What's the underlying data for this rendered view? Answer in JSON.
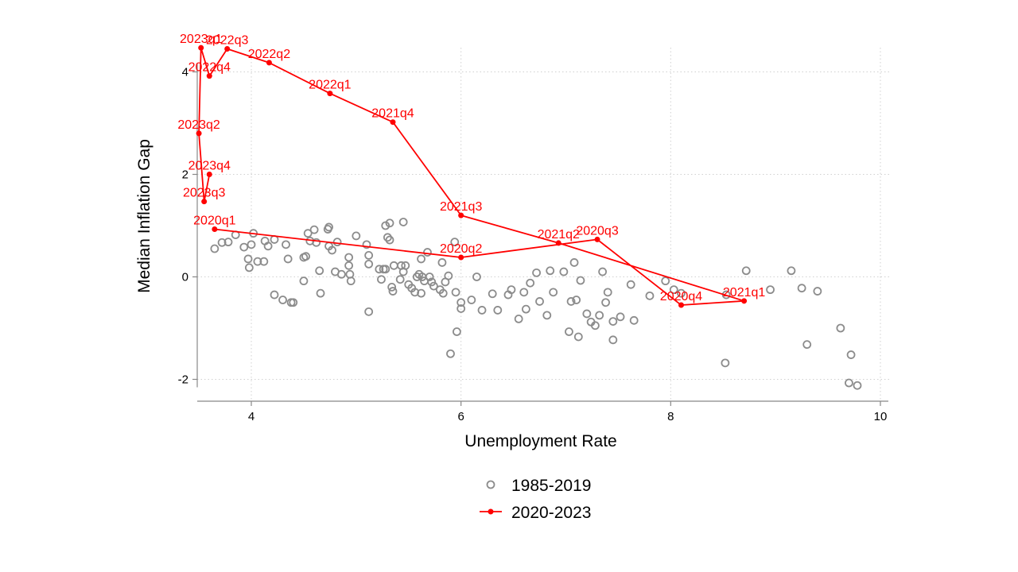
{
  "chart_data": {
    "type": "scatter",
    "xlabel": "Unemployment Rate",
    "ylabel": "Median Inflation Gap",
    "xlim": [
      3.5,
      10.1
    ],
    "ylim": [
      -2.4,
      4.7
    ],
    "xticks": [
      4,
      6,
      8,
      10
    ],
    "yticks": [
      -2,
      0,
      2,
      4
    ],
    "xtick_labels": [
      "4",
      "6",
      "8",
      "10"
    ],
    "ytick_labels": [
      "-2",
      "0",
      "2",
      "4"
    ],
    "grid": true,
    "legend_position": "bottom-center",
    "colors": {
      "historical": "#8c8c8c",
      "recent": "#ff0000",
      "grid": "#d0d0d0",
      "axis": "#888888"
    },
    "series": [
      {
        "name": "1985-2019",
        "style": "hollow-circles",
        "points": [
          [
            3.65,
            0.55
          ],
          [
            3.72,
            0.67
          ],
          [
            3.78,
            0.68
          ],
          [
            3.85,
            0.82
          ],
          [
            3.93,
            0.58
          ],
          [
            3.97,
            0.35
          ],
          [
            3.98,
            0.18
          ],
          [
            4.0,
            0.63
          ],
          [
            4.02,
            0.85
          ],
          [
            4.06,
            0.3
          ],
          [
            4.12,
            0.3
          ],
          [
            4.13,
            0.7
          ],
          [
            4.16,
            0.6
          ],
          [
            4.22,
            0.73
          ],
          [
            4.22,
            -0.35
          ],
          [
            4.3,
            -0.45
          ],
          [
            4.33,
            0.63
          ],
          [
            4.35,
            0.35
          ],
          [
            4.38,
            -0.5
          ],
          [
            4.4,
            -0.5
          ],
          [
            4.5,
            0.38
          ],
          [
            4.5,
            -0.08
          ],
          [
            4.52,
            0.4
          ],
          [
            4.54,
            0.85
          ],
          [
            4.56,
            0.7
          ],
          [
            4.6,
            0.92
          ],
          [
            4.62,
            0.67
          ],
          [
            4.65,
            0.12
          ],
          [
            4.66,
            -0.32
          ],
          [
            4.73,
            0.93
          ],
          [
            4.74,
            0.6
          ],
          [
            4.74,
            0.97
          ],
          [
            4.77,
            0.52
          ],
          [
            4.8,
            0.1
          ],
          [
            4.82,
            0.68
          ],
          [
            4.86,
            0.05
          ],
          [
            4.93,
            0.38
          ],
          [
            4.93,
            0.22
          ],
          [
            4.94,
            0.05
          ],
          [
            4.95,
            -0.08
          ],
          [
            5.0,
            0.8
          ],
          [
            5.1,
            0.63
          ],
          [
            5.12,
            0.42
          ],
          [
            5.12,
            0.25
          ],
          [
            5.12,
            -0.68
          ],
          [
            5.22,
            0.15
          ],
          [
            5.24,
            -0.05
          ],
          [
            5.26,
            0.15
          ],
          [
            5.28,
            0.15
          ],
          [
            5.28,
            1.0
          ],
          [
            5.3,
            0.77
          ],
          [
            5.32,
            0.72
          ],
          [
            5.32,
            1.05
          ],
          [
            5.34,
            -0.2
          ],
          [
            5.35,
            -0.28
          ],
          [
            5.36,
            0.22
          ],
          [
            5.42,
            -0.05
          ],
          [
            5.43,
            0.22
          ],
          [
            5.45,
            0.1
          ],
          [
            5.45,
            1.07
          ],
          [
            5.47,
            0.22
          ],
          [
            5.5,
            -0.15
          ],
          [
            5.53,
            -0.22
          ],
          [
            5.56,
            -0.3
          ],
          [
            5.58,
            0.0
          ],
          [
            5.6,
            0.05
          ],
          [
            5.62,
            0.35
          ],
          [
            5.62,
            -0.32
          ],
          [
            5.63,
            0.0
          ],
          [
            5.65,
            -0.08
          ],
          [
            5.68,
            0.48
          ],
          [
            5.7,
            0.0
          ],
          [
            5.72,
            -0.1
          ],
          [
            5.74,
            -0.18
          ],
          [
            5.8,
            -0.25
          ],
          [
            5.82,
            0.28
          ],
          [
            5.83,
            -0.32
          ],
          [
            5.85,
            -0.1
          ],
          [
            5.88,
            0.02
          ],
          [
            5.9,
            -1.5
          ],
          [
            5.94,
            0.68
          ],
          [
            5.95,
            -0.3
          ],
          [
            5.96,
            -1.07
          ],
          [
            6.0,
            -0.5
          ],
          [
            6.0,
            -0.62
          ],
          [
            6.1,
            -0.45
          ],
          [
            6.15,
            0.0
          ],
          [
            6.2,
            -0.65
          ],
          [
            6.3,
            -0.33
          ],
          [
            6.35,
            -0.65
          ],
          [
            6.45,
            -0.35
          ],
          [
            6.48,
            -0.25
          ],
          [
            6.55,
            -0.82
          ],
          [
            6.6,
            -0.3
          ],
          [
            6.62,
            -0.63
          ],
          [
            6.66,
            -0.12
          ],
          [
            6.72,
            0.08
          ],
          [
            6.75,
            -0.48
          ],
          [
            6.82,
            -0.75
          ],
          [
            6.85,
            0.12
          ],
          [
            6.88,
            -0.3
          ],
          [
            6.98,
            0.1
          ],
          [
            7.03,
            -1.07
          ],
          [
            7.05,
            -0.48
          ],
          [
            7.08,
            0.28
          ],
          [
            7.1,
            -0.45
          ],
          [
            7.12,
            -1.17
          ],
          [
            7.14,
            -0.07
          ],
          [
            7.2,
            -0.72
          ],
          [
            7.24,
            -0.88
          ],
          [
            7.28,
            -0.95
          ],
          [
            7.32,
            -0.75
          ],
          [
            7.35,
            0.1
          ],
          [
            7.38,
            -0.5
          ],
          [
            7.4,
            -0.3
          ],
          [
            7.45,
            -0.87
          ],
          [
            7.45,
            -1.23
          ],
          [
            7.52,
            -0.78
          ],
          [
            7.62,
            -0.15
          ],
          [
            7.65,
            -0.85
          ],
          [
            7.8,
            -0.37
          ],
          [
            7.95,
            -0.08
          ],
          [
            8.03,
            -0.25
          ],
          [
            8.1,
            -0.32
          ],
          [
            8.52,
            -1.68
          ],
          [
            8.53,
            -0.35
          ],
          [
            8.72,
            0.12
          ],
          [
            8.95,
            -0.25
          ],
          [
            9.15,
            0.12
          ],
          [
            9.25,
            -0.22
          ],
          [
            9.3,
            -1.32
          ],
          [
            9.4,
            -0.28
          ],
          [
            9.62,
            -1.0
          ],
          [
            9.7,
            -2.07
          ],
          [
            9.72,
            -1.52
          ],
          [
            9.78,
            -2.12
          ]
        ]
      },
      {
        "name": "2020-2023",
        "style": "line-with-dots",
        "points": [
          {
            "label": "2020q1",
            "x": 3.65,
            "y": 0.93
          },
          {
            "label": "2020q2",
            "x": 6.0,
            "y": 0.38
          },
          {
            "label": "2020q3",
            "x": 7.3,
            "y": 0.73
          },
          {
            "label": "2020q4",
            "x": 8.1,
            "y": -0.55
          },
          {
            "label": "2021q1",
            "x": 8.7,
            "y": -0.47
          },
          {
            "label": "2021q2",
            "x": 6.93,
            "y": 0.66
          },
          {
            "label": "2021q3",
            "x": 6.0,
            "y": 1.2
          },
          {
            "label": "2021q4",
            "x": 5.35,
            "y": 3.02
          },
          {
            "label": "2022q1",
            "x": 4.75,
            "y": 3.58
          },
          {
            "label": "2022q2",
            "x": 4.17,
            "y": 4.18
          },
          {
            "label": "2022q3",
            "x": 3.77,
            "y": 4.45
          },
          {
            "label": "2022q4",
            "x": 3.6,
            "y": 3.92
          },
          {
            "label": "2023q1",
            "x": 3.52,
            "y": 4.47
          },
          {
            "label": "2023q2",
            "x": 3.5,
            "y": 2.8
          },
          {
            "label": "2023q3",
            "x": 3.55,
            "y": 1.47
          },
          {
            "label": "2023q4",
            "x": 3.6,
            "y": 2.0
          }
        ]
      }
    ]
  }
}
